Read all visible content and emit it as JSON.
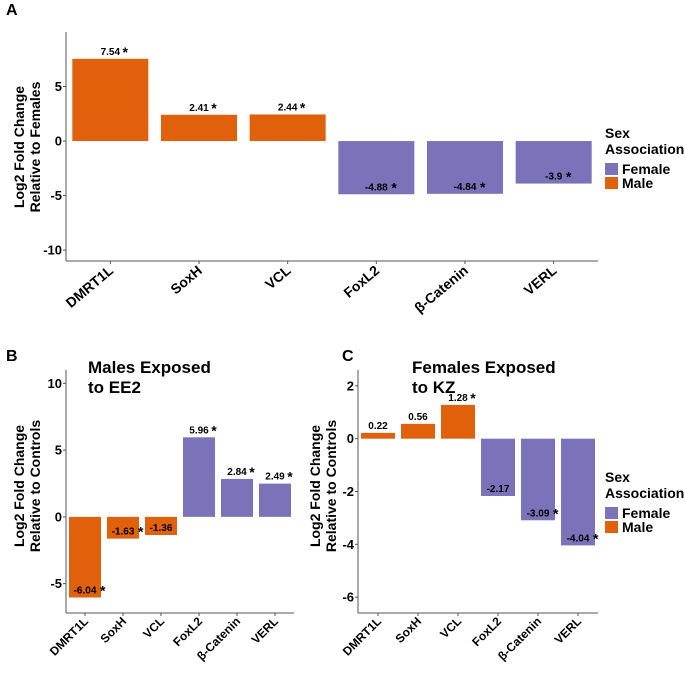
{
  "colors": {
    "male": "#E0600B",
    "female": "#7B72B9",
    "axis": "#555555"
  },
  "panels": {
    "a": {
      "letter": "A"
    },
    "b": {
      "letter": "B"
    },
    "c": {
      "letter": "C"
    }
  },
  "legend": {
    "title_line1": "Sex",
    "title_line2": "Association",
    "female": "Female",
    "male": "Male"
  },
  "chart_data": [
    {
      "id": "A",
      "type": "bar",
      "title": "",
      "ylabel_line1": "Log2 Fold Change",
      "ylabel_line2": "Relative to Females",
      "xlabel": "",
      "categories": [
        "DMRT1L",
        "SoxH",
        "VCL",
        "FoxL2",
        "β-Catenin",
        "VERL"
      ],
      "values": [
        7.54,
        2.41,
        2.44,
        -4.88,
        -4.84,
        -3.9
      ],
      "labels": [
        "7.54",
        "2.41",
        "2.44",
        "-4.88",
        "-4.84",
        "-3.9"
      ],
      "significant": [
        true,
        true,
        true,
        true,
        true,
        true
      ],
      "sex": [
        "Male",
        "Male",
        "Male",
        "Female",
        "Female",
        "Female"
      ],
      "ylim": [
        -11,
        10
      ],
      "yticks": [
        -10,
        -5,
        0,
        5
      ],
      "legend_position": "right"
    },
    {
      "id": "B",
      "type": "bar",
      "title_line1": "Males Exposed",
      "title_line2": "to EE2",
      "ylabel_line1": "Log2 Fold Change",
      "ylabel_line2": "Relative to Controls",
      "xlabel": "",
      "categories": [
        "DMRT1L",
        "SoxH",
        "VCL",
        "FoxL2",
        "β-Catenin",
        "VERL"
      ],
      "values": [
        -6.04,
        -1.63,
        -1.36,
        5.96,
        2.84,
        2.49
      ],
      "labels": [
        "-6.04",
        "-1.63",
        "-1.36",
        "5.96",
        "2.84",
        "2.49"
      ],
      "significant": [
        true,
        true,
        false,
        true,
        true,
        true
      ],
      "sex": [
        "Male",
        "Male",
        "Male",
        "Female",
        "Female",
        "Female"
      ],
      "ylim": [
        -7.2,
        11
      ],
      "yticks": [
        -5,
        0,
        5,
        10
      ],
      "legend_position": "none"
    },
    {
      "id": "C",
      "type": "bar",
      "title_line1": "Females Exposed",
      "title_line2": "to KZ",
      "ylabel_line1": "Log2 Fold Change",
      "ylabel_line2": "Relative to Controls",
      "xlabel": "",
      "categories": [
        "DMRT1L",
        "SoxH",
        "VCL",
        "FoxL2",
        "β-Catenin",
        "VERL"
      ],
      "values": [
        0.22,
        0.56,
        1.28,
        -2.17,
        -3.09,
        -4.04
      ],
      "labels": [
        "0.22",
        "0.56",
        "1.28",
        "-2.17",
        "-3.09",
        "-4.04"
      ],
      "significant": [
        false,
        false,
        true,
        false,
        true,
        true
      ],
      "sex": [
        "Male",
        "Male",
        "Male",
        "Female",
        "Female",
        "Female"
      ],
      "ylim": [
        -6.6,
        2.6
      ],
      "yticks": [
        -6,
        -4,
        -2,
        0,
        2
      ],
      "legend_position": "right"
    }
  ]
}
